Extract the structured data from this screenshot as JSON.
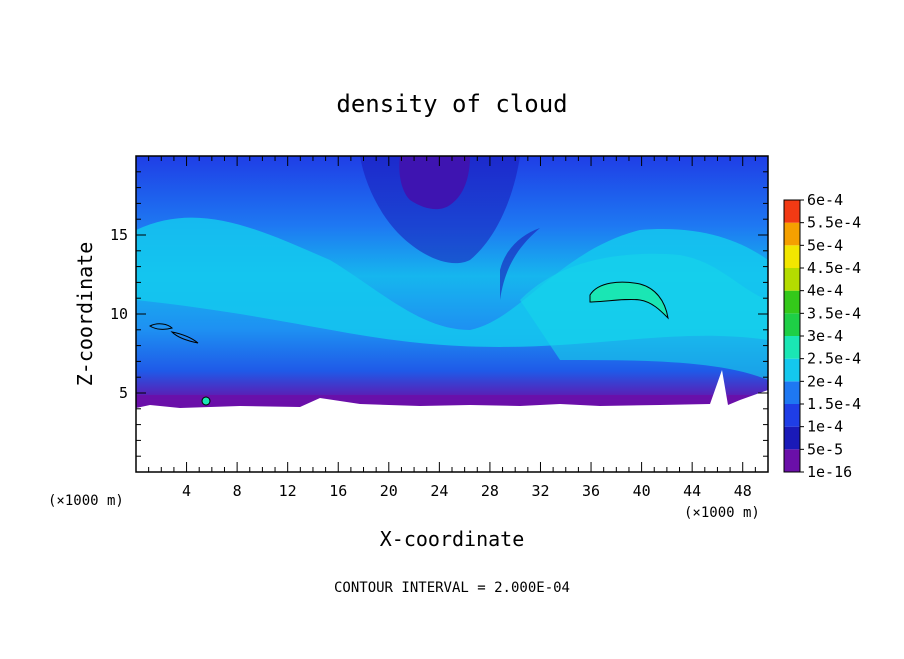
{
  "chart_data": {
    "type": "heatmap",
    "title": "density of cloud",
    "xlabel": "X-coordinate",
    "ylabel": "Z-coordinate",
    "x_unit_left": "(×1000 m)",
    "x_unit_right": "(×1000 m)",
    "xlim": [
      0,
      50
    ],
    "ylim": [
      0,
      20
    ],
    "x_ticks": [
      4,
      8,
      12,
      16,
      20,
      24,
      28,
      32,
      36,
      40,
      44,
      48
    ],
    "x_tick_labels": [
      "4",
      "8",
      "12",
      "16",
      "20",
      "24",
      "28",
      "32",
      "36",
      "40",
      "44",
      "48"
    ],
    "y_ticks": [
      5,
      10,
      15
    ],
    "y_tick_labels": [
      "5",
      "10",
      "15"
    ],
    "contour_interval_text": "CONTOUR INTERVAL = 2.000E-04",
    "colorbar": {
      "levels": [
        1e-16,
        5e-05,
        0.0001,
        0.00015,
        0.0002,
        0.00025,
        0.0003,
        0.00035,
        0.0004,
        0.00045,
        0.0005,
        0.00055,
        0.0006
      ],
      "labels": [
        "1e-16",
        "5e-5",
        "1e-4",
        "1.5e-4",
        "2e-4",
        "2.5e-4",
        "3e-4",
        "3.5e-4",
        "4e-4",
        "4.5e-4",
        "5e-4",
        "5.5e-4",
        "6e-4"
      ],
      "colors": [
        "#6a0fa8",
        "#1a1ab8",
        "#1f3ee6",
        "#1e78f2",
        "#14c8ee",
        "#1ae6b4",
        "#1ecf46",
        "#34c91a",
        "#b4dc00",
        "#f2e600",
        "#f5a000",
        "#f23a14",
        "#f06e6e"
      ]
    }
  }
}
